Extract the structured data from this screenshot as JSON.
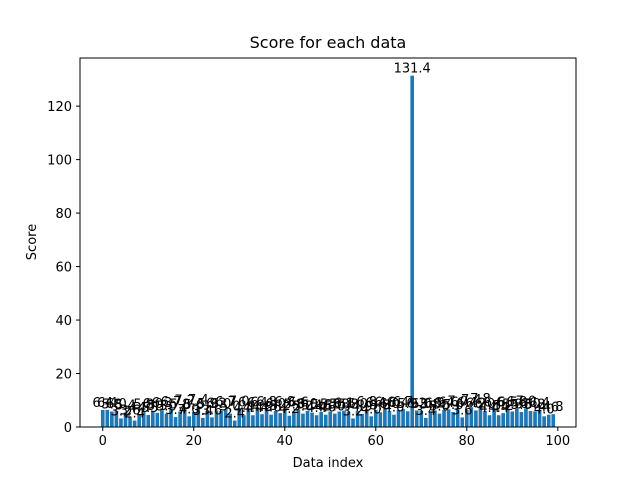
{
  "chart_data": {
    "type": "bar",
    "title": "Score for each data",
    "xlabel": "Data index",
    "ylabel": "Score",
    "xlim": [
      -5,
      104
    ],
    "ylim": [
      0,
      138
    ],
    "xticks": [
      0,
      20,
      40,
      60,
      80,
      100
    ],
    "yticks": [
      0,
      20,
      40,
      60,
      80,
      100,
      120
    ],
    "grid": false,
    "bar_color": "#1f77b4",
    "x": [
      0,
      1,
      2,
      3,
      4,
      5,
      6,
      7,
      8,
      9,
      10,
      11,
      12,
      13,
      14,
      15,
      16,
      17,
      18,
      19,
      20,
      21,
      22,
      23,
      24,
      25,
      26,
      27,
      28,
      29,
      30,
      31,
      32,
      33,
      34,
      35,
      36,
      37,
      38,
      39,
      40,
      41,
      42,
      43,
      44,
      45,
      46,
      47,
      48,
      49,
      50,
      51,
      52,
      53,
      54,
      55,
      56,
      57,
      58,
      59,
      60,
      61,
      62,
      63,
      64,
      65,
      66,
      67,
      68,
      69,
      70,
      71,
      72,
      73,
      74,
      75,
      76,
      77,
      78,
      79,
      80,
      81,
      82,
      83,
      84,
      85,
      86,
      87,
      88,
      89,
      90,
      91,
      92,
      93,
      94,
      95,
      96,
      97,
      98,
      99
    ],
    "values": [
      6.4,
      6.4,
      5.8,
      6.0,
      3.2,
      5.4,
      3.6,
      2.4,
      4.5,
      5.8,
      4.5,
      6.0,
      5.3,
      6.3,
      5.0,
      6.7,
      3.7,
      5.8,
      7.2,
      4.0,
      5.6,
      7.4,
      3.4,
      5.9,
      3.6,
      6.2,
      6.0,
      6.7,
      5.0,
      2.4,
      7.0,
      4.4,
      6.6,
      4.4,
      6.4,
      4.8,
      6.8,
      4.6,
      6.0,
      5.2,
      6.8,
      4.2,
      5.8,
      6.6,
      5.0,
      6.0,
      5.4,
      4.4,
      5.6,
      4.6,
      5.8,
      5.0,
      5.8,
      6.1,
      5.8,
      3.2,
      6.0,
      4.9,
      6.8,
      4.0,
      6.4,
      5.5,
      6.6,
      6.0,
      4.6,
      6.4,
      6.7,
      5.9,
      131.4,
      6.2,
      6.0,
      3.4,
      5.8,
      6.2,
      5.0,
      6.4,
      6.6,
      5.6,
      7.0,
      3.6,
      6.4,
      7.4,
      6.2,
      7.8,
      6.0,
      4.4,
      6.6,
      4.4,
      5.2,
      6.5,
      5.8,
      6.8,
      5.6,
      7.0,
      6.0,
      5.8,
      6.4,
      4.0,
      4.6,
      4.8
    ],
    "labels": [
      "6.4",
      "6.4",
      "5.8",
      "6.0",
      "3.2",
      "5.4",
      "3.6",
      "2.4",
      "4.5",
      "5.8",
      "4.5",
      "6.0",
      "5.3",
      "6.3",
      "5.0",
      "6.7",
      "3.7",
      "5.8",
      "7.2",
      "4.0",
      "5.6",
      "7.4",
      "3.4",
      "5.9",
      "3.6",
      "6.2",
      "6.0",
      "6.7",
      "5.0",
      "2.4",
      "7.0",
      "4.4",
      "6.6",
      "4.4",
      "6.4",
      "4.8",
      "6.8",
      "4.6",
      "6.0",
      "5.2",
      "6.8",
      "4.2",
      "5.8",
      "6.6",
      "5.0",
      "6.0",
      "5.4",
      "4.4",
      "5.6",
      "4.6",
      "5.8",
      "5.0",
      "5.8",
      "6.1",
      "5.8",
      "3.2",
      "6.0",
      "4.9",
      "6.8",
      "4.0",
      "6.4",
      "5.5",
      "6.6",
      "6.0",
      "4.6",
      "6.4",
      "6.7",
      "5.9",
      "131.4",
      "6.2",
      "6.0",
      "3.4",
      "5.8",
      "6.2",
      "5.0",
      "6.4",
      "6.6",
      "5.6",
      "7.0",
      "3.6",
      "6.4",
      "7.4",
      "6.2",
      "7.8",
      "6.0",
      "4.4",
      "6.6",
      "4.4",
      "5.2",
      "6.5",
      "5.8",
      "6.8",
      "5.6",
      "7.0",
      "6.0",
      "5.8",
      "6.4",
      "4.0",
      "4.6",
      "4.8"
    ]
  }
}
